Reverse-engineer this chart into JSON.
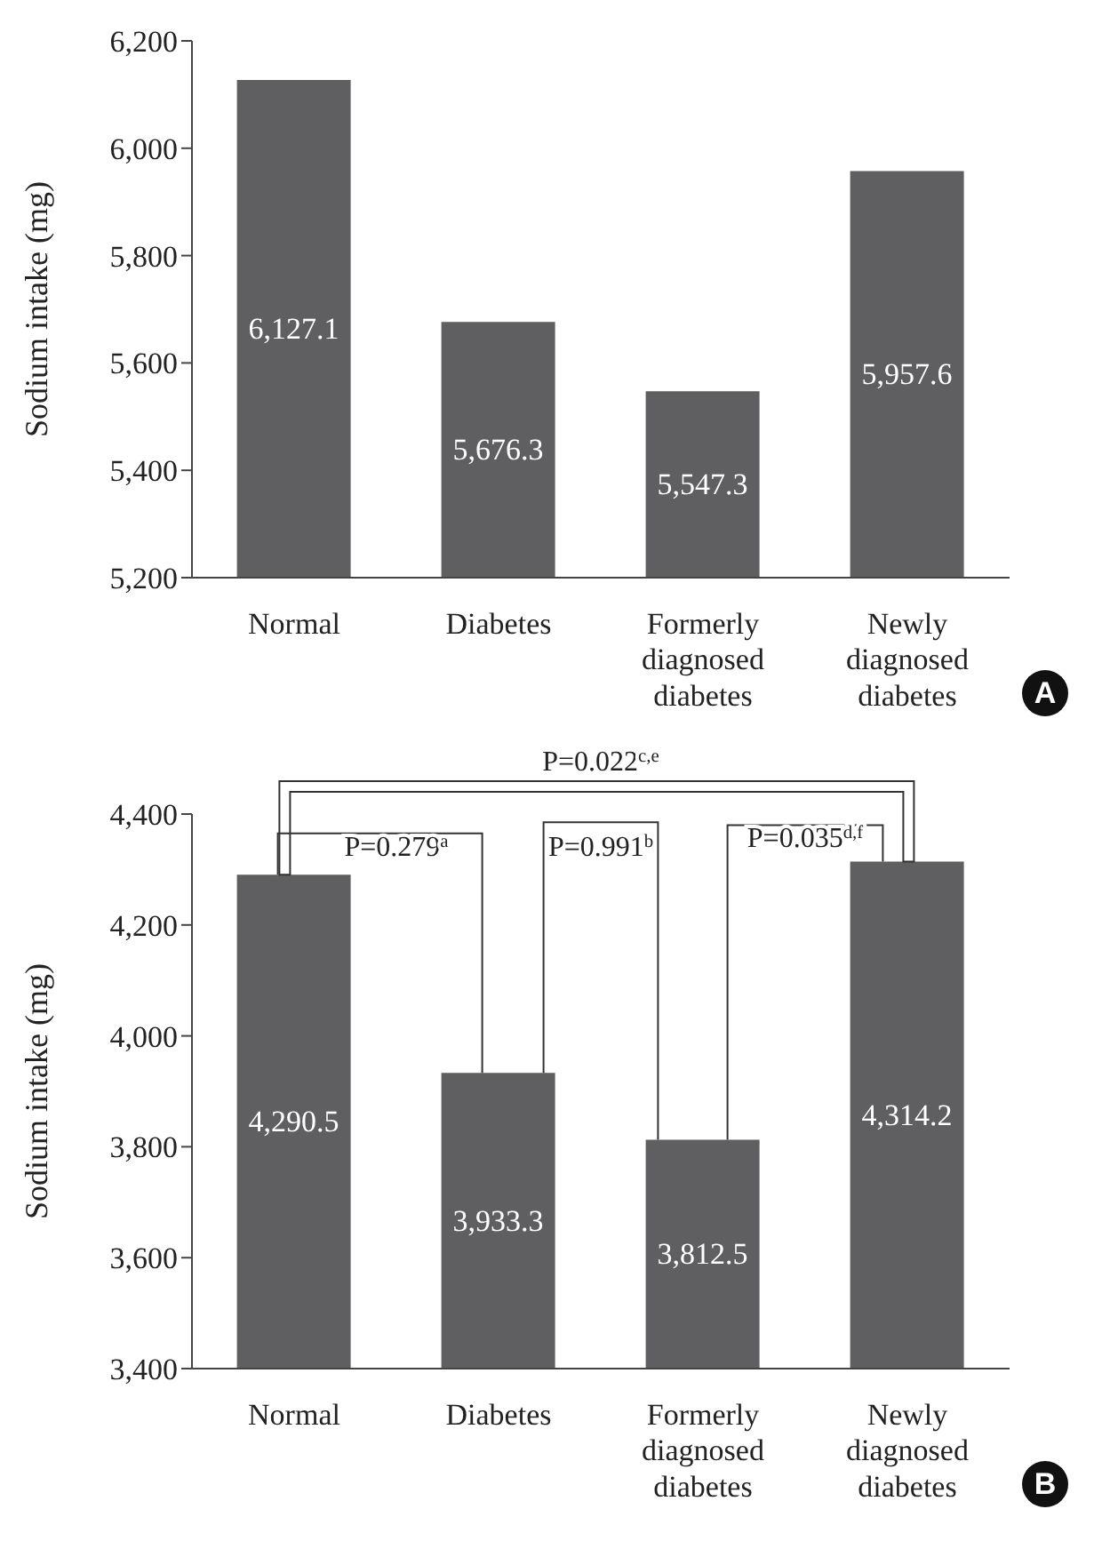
{
  "chart_data": [
    {
      "type": "bar",
      "ylabel": "Sodium intake (mg)",
      "categories": [
        "Normal",
        "Diabetes",
        "Formerly diagnosed diabetes",
        "Newly diagnosed diabetes"
      ],
      "values": [
        6127.1,
        5676.3,
        5547.3,
        5957.6
      ],
      "color": "#5f5f62",
      "ylim": [
        5200,
        6200
      ],
      "yticks": [
        {
          "value": 5200,
          "label": "5,200"
        },
        {
          "value": 5400,
          "label": "5,400"
        },
        {
          "value": 5600,
          "label": "5,600"
        },
        {
          "value": 5800,
          "label": "5,800"
        },
        {
          "value": 6000,
          "label": "6,000"
        },
        {
          "value": 6200,
          "label": "6,200"
        }
      ],
      "value_labels": [
        "6,127.1",
        "5,676.3",
        "5,547.3",
        "5,957.6"
      ],
      "annotations": [
        "A"
      ]
    },
    {
      "type": "bar",
      "ylabel": "Sodium intake (mg)",
      "categories": [
        "Normal",
        "Diabetes",
        "Formerly diagnosed diabetes",
        "Newly diagnosed diabetes"
      ],
      "values": [
        4290.5,
        3933.3,
        3812.5,
        4314.2
      ],
      "color": "#5f5f62",
      "ylim": [
        3400,
        4400
      ],
      "yticks": [
        {
          "value": 3400,
          "label": "3,400"
        },
        {
          "value": 3600,
          "label": "3,600"
        },
        {
          "value": 3800,
          "label": "3,800"
        },
        {
          "value": 4000,
          "label": "4,000"
        },
        {
          "value": 4200,
          "label": "4,200"
        },
        {
          "value": 4400,
          "label": "4,400"
        }
      ],
      "value_labels": [
        "4,290.5",
        "3,933.3",
        "3,812.5",
        "4,314.2"
      ],
      "annotations": [
        "P=0.022$^{c,e}$",
        "P=0.279$^{a}$",
        "P=0.991$^{b}$",
        "P=0.035$^{d,f}$",
        "B"
      ]
    }
  ]
}
